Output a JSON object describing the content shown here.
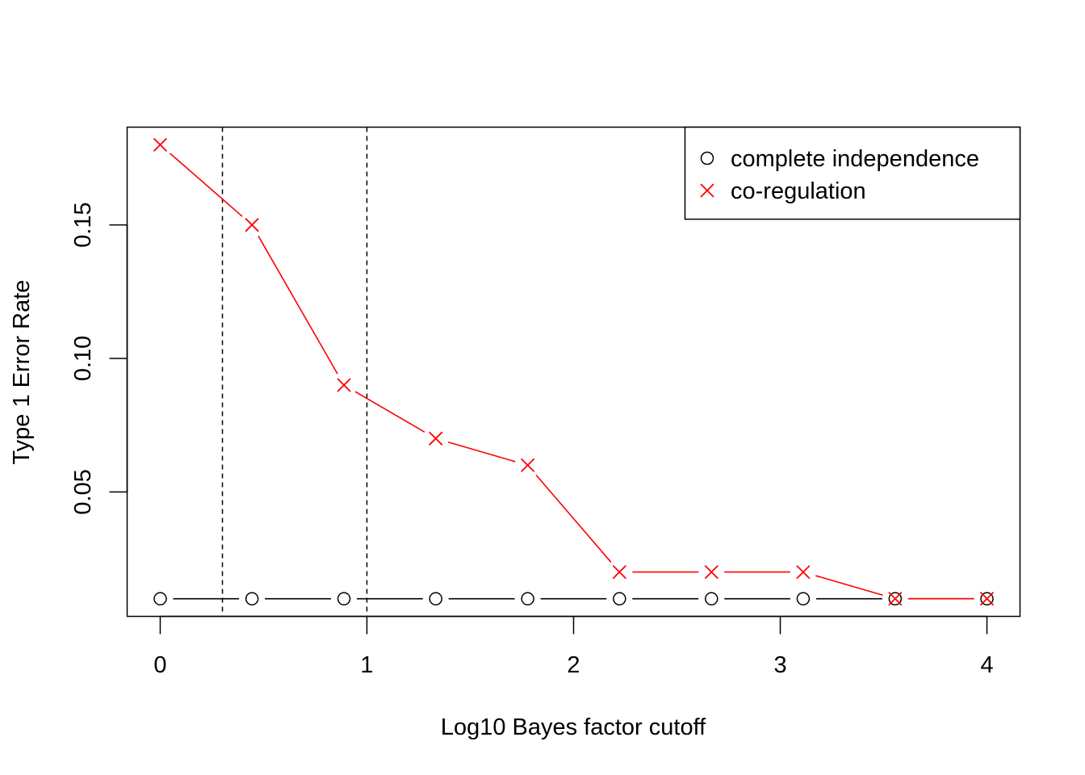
{
  "chart_data": {
    "type": "line",
    "title": "",
    "xlabel": "Log10 Bayes factor cutoff",
    "ylabel": "Type 1 Error Rate",
    "xlim": [
      -0.16,
      4.16
    ],
    "ylim": [
      0.0034,
      0.1866
    ],
    "x_ticks": [
      0,
      1,
      2,
      3,
      4
    ],
    "x_tick_labels": [
      "0",
      "1",
      "2",
      "3",
      "4"
    ],
    "y_ticks": [
      0.05,
      0.1,
      0.15
    ],
    "y_tick_labels": [
      "0.05",
      "0.10",
      "0.15"
    ],
    "x": [
      0,
      0.444,
      0.889,
      1.333,
      1.778,
      2.222,
      2.667,
      3.111,
      3.556,
      4.0
    ],
    "series": [
      {
        "name": "complete independence",
        "marker": "circle",
        "color": "#000000",
        "values": [
          0.01,
          0.01,
          0.01,
          0.01,
          0.01,
          0.01,
          0.01,
          0.01,
          0.01,
          0.01
        ]
      },
      {
        "name": "co-regulation",
        "marker": "cross",
        "color": "#ff0000",
        "values": [
          0.18,
          0.15,
          0.09,
          0.07,
          0.06,
          0.02,
          0.02,
          0.02,
          0.01,
          0.01
        ]
      }
    ],
    "vlines": [
      0.301,
      1.0
    ],
    "vline_style": "dashed",
    "grid": false,
    "legend_position": "top-right"
  }
}
